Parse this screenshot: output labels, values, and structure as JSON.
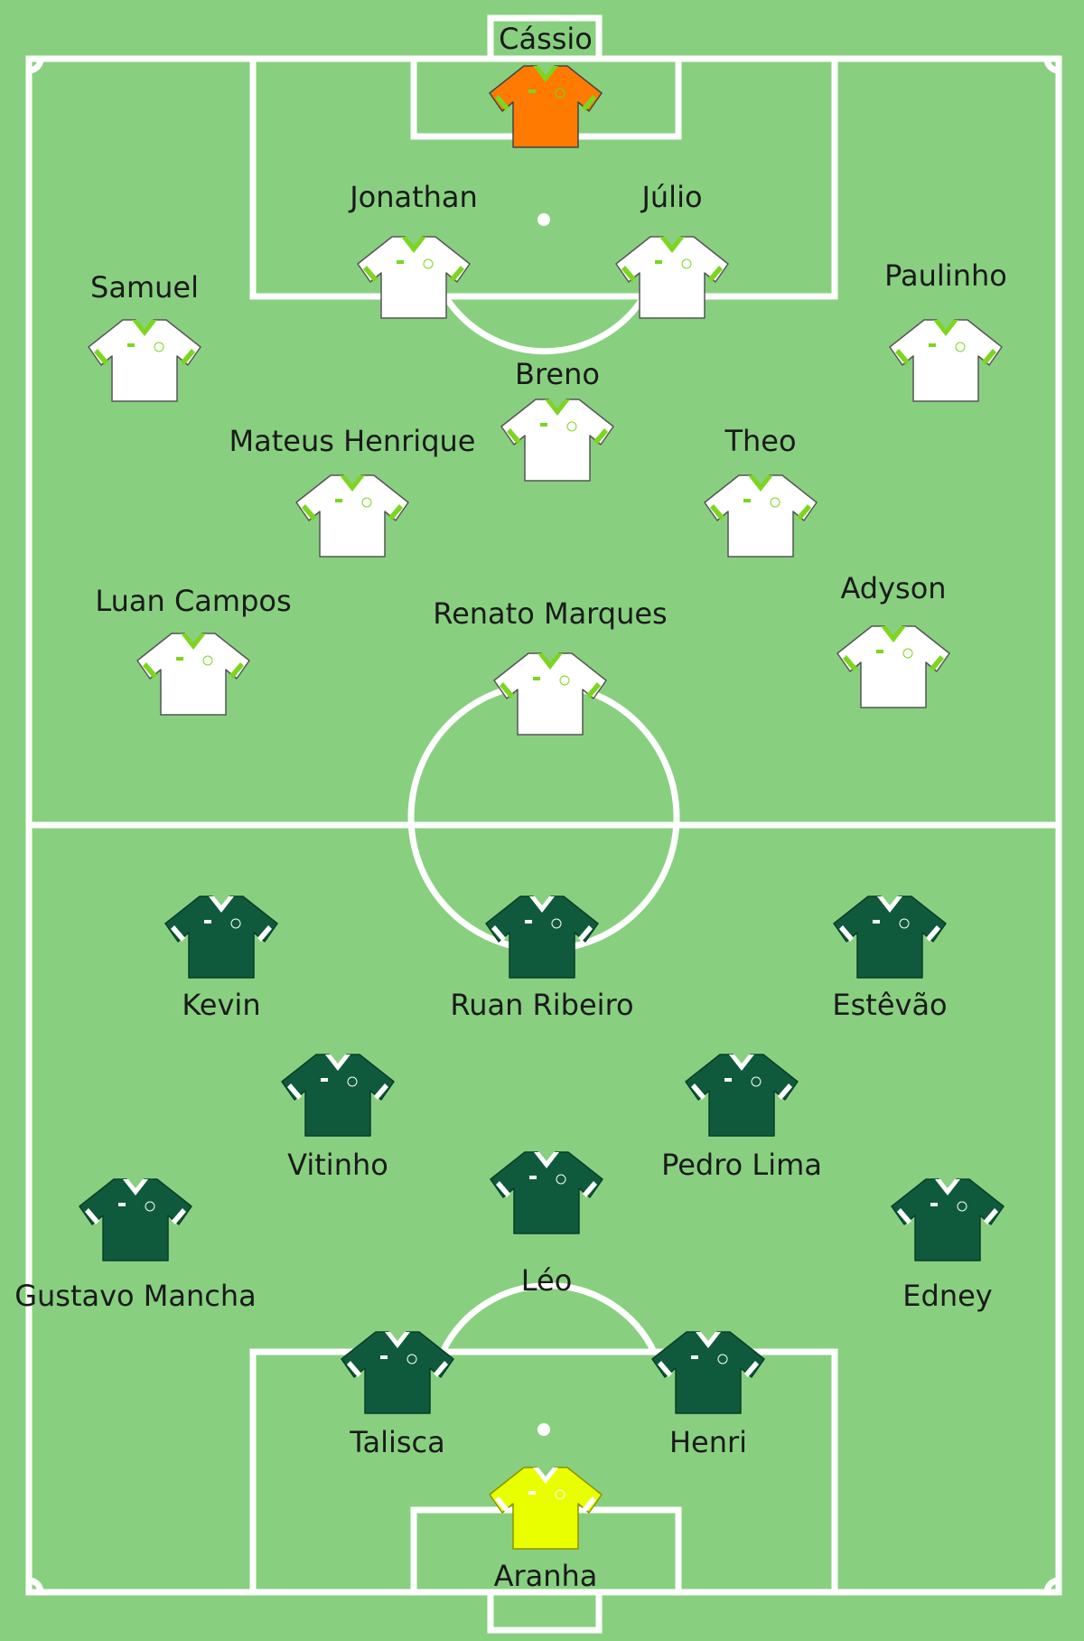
{
  "colors": {
    "pitch": "#88d080",
    "lines": "#ffffff",
    "home_shirt": "#ffffff",
    "home_trim": "#7dd51f",
    "away_shirt": "#0f5a3c",
    "home_keeper": "#ff7a00",
    "away_keeper": "#e9ff00"
  },
  "players": [
    {
      "name": "Cássio",
      "kit": "home_keeper"
    },
    {
      "name": "Jonathan",
      "kit": "home"
    },
    {
      "name": "Júlio",
      "kit": "home"
    },
    {
      "name": "Samuel",
      "kit": "home"
    },
    {
      "name": "Paulinho",
      "kit": "home"
    },
    {
      "name": "Breno",
      "kit": "home"
    },
    {
      "name": "Mateus Henrique",
      "kit": "home"
    },
    {
      "name": "Theo",
      "kit": "home"
    },
    {
      "name": "Luan Campos",
      "kit": "home"
    },
    {
      "name": "Renato Marques",
      "kit": "home"
    },
    {
      "name": "Adyson",
      "kit": "home"
    },
    {
      "name": "Kevin",
      "kit": "away"
    },
    {
      "name": "Ruan Ribeiro",
      "kit": "away"
    },
    {
      "name": "Estêvão",
      "kit": "away"
    },
    {
      "name": "Vitinho",
      "kit": "away"
    },
    {
      "name": "Pedro Lima",
      "kit": "away"
    },
    {
      "name": "Gustavo Mancha",
      "kit": "away"
    },
    {
      "name": "Léo",
      "kit": "away"
    },
    {
      "name": "Edney",
      "kit": "away"
    },
    {
      "name": "Talisca",
      "kit": "away"
    },
    {
      "name": "Henri",
      "kit": "away"
    },
    {
      "name": "Aranha",
      "kit": "away_keeper"
    }
  ]
}
